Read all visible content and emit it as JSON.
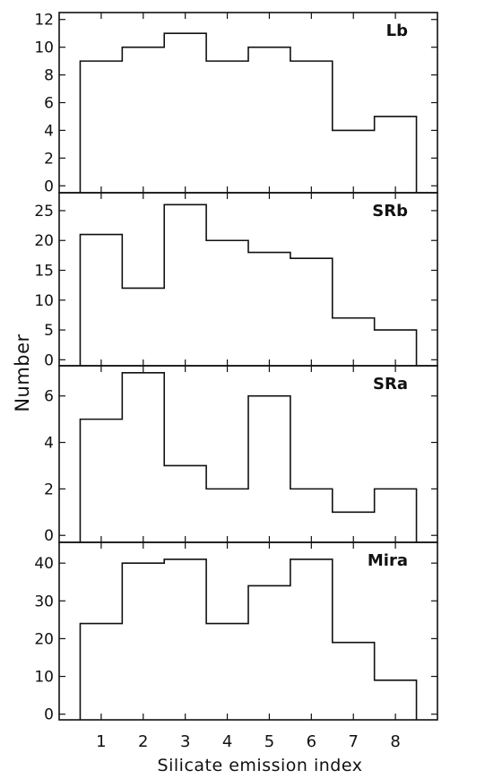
{
  "chart_data": {
    "type": "bar",
    "xlabel": "Silicate emission index",
    "ylabel": "Number",
    "x_ticks": [
      1,
      2,
      3,
      4,
      5,
      6,
      7,
      8
    ],
    "x_range": [
      0,
      9
    ],
    "panels": [
      {
        "name": "Lb",
        "categories": [
          1,
          2,
          3,
          4,
          5,
          6,
          7,
          8
        ],
        "values": [
          9,
          10,
          11,
          9,
          10,
          9,
          4,
          5
        ],
        "ylim": [
          -0.5,
          12.5
        ],
        "yticks": [
          0,
          2,
          4,
          6,
          8,
          10,
          12
        ]
      },
      {
        "name": "SRb",
        "categories": [
          1,
          2,
          3,
          4,
          5,
          6,
          7,
          8
        ],
        "values": [
          21,
          12,
          26,
          20,
          18,
          17,
          7,
          5
        ],
        "ylim": [
          -1,
          28
        ],
        "yticks": [
          0,
          5,
          10,
          15,
          20,
          25
        ]
      },
      {
        "name": "SRa",
        "categories": [
          1,
          2,
          3,
          4,
          5,
          6,
          7,
          8
        ],
        "values": [
          5,
          7,
          3,
          2,
          6,
          2,
          1,
          2
        ],
        "ylim": [
          -0.3,
          7.3
        ],
        "yticks": [
          0,
          2,
          4,
          6
        ]
      },
      {
        "name": "Mira",
        "categories": [
          1,
          2,
          3,
          4,
          5,
          6,
          7,
          8
        ],
        "values": [
          24,
          40,
          41,
          24,
          34,
          41,
          19,
          9
        ],
        "ylim": [
          -1.5,
          45.5
        ],
        "yticks": [
          0,
          10,
          20,
          30,
          40
        ]
      }
    ]
  }
}
